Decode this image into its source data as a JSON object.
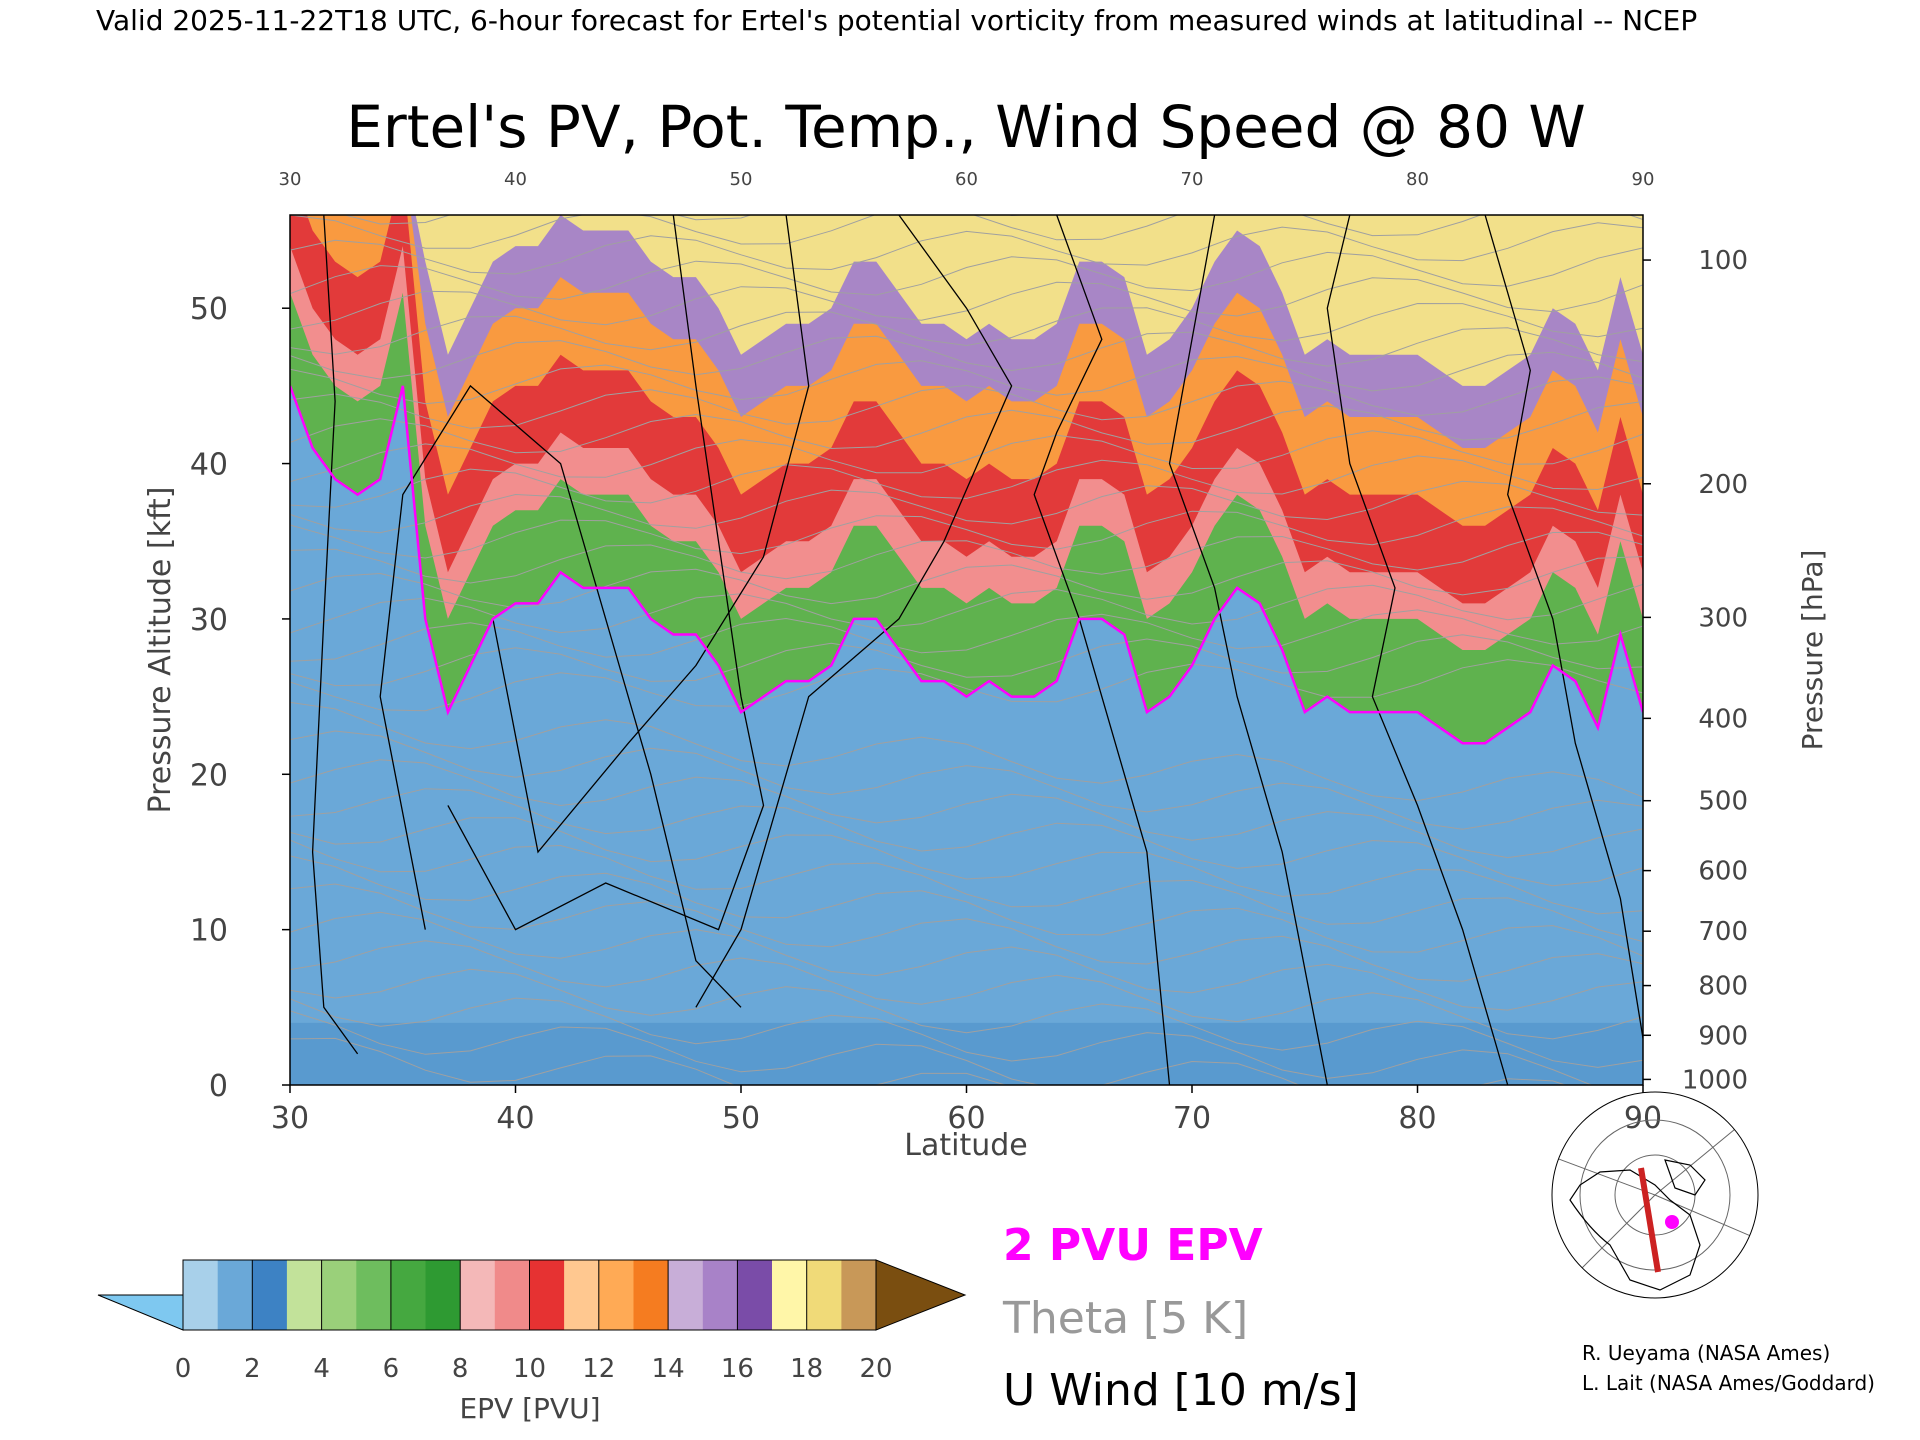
{
  "header_line": "Valid 2025-11-22T18 UTC, 6-hour forecast for Ertel's potential vorticity from measured winds at latitudinal -- NCEP",
  "chart_data": {
    "type": "heatmap",
    "title": "Ertel's PV, Pot. Temp., Wind Speed @ 80 W",
    "xlabel": "Latitude",
    "ylabel_left": "Pressure Altitude [kft]",
    "ylabel_right": "Pressure [hPa]",
    "xlim": [
      30,
      90
    ],
    "ylim": [
      0,
      56
    ],
    "x_ticks": [
      30,
      40,
      50,
      60,
      70,
      80,
      90
    ],
    "y_ticks": [
      0,
      10,
      20,
      30,
      40,
      50
    ],
    "pressure_ticks": [
      {
        "hpa": 100,
        "kft": 53.1
      },
      {
        "hpa": 200,
        "kft": 38.7
      },
      {
        "hpa": 300,
        "kft": 30.1
      },
      {
        "hpa": 400,
        "kft": 23.6
      },
      {
        "hpa": 500,
        "kft": 18.3
      },
      {
        "hpa": 600,
        "kft": 13.8
      },
      {
        "hpa": 700,
        "kft": 9.9
      },
      {
        "hpa": 800,
        "kft": 6.4
      },
      {
        "hpa": 900,
        "kft": 3.2
      },
      {
        "hpa": 1000,
        "kft": 0.36
      }
    ],
    "pv_2pvu_boundary": {
      "lat": [
        30,
        31,
        32,
        33,
        34,
        35,
        36,
        37,
        38,
        39,
        40,
        41,
        42,
        43,
        44,
        45,
        46,
        47,
        48,
        49,
        50,
        51,
        52,
        53,
        54,
        55,
        56,
        57,
        58,
        59,
        60,
        61,
        62,
        63,
        64,
        65,
        66,
        67,
        68,
        69,
        70,
        71,
        72,
        73,
        74,
        75,
        76,
        77,
        78,
        79,
        80,
        81,
        82,
        83,
        84,
        85,
        86,
        87,
        88,
        89,
        90
      ],
      "kft": [
        45,
        41,
        39,
        38,
        39,
        45,
        30,
        24,
        27,
        30,
        31,
        31,
        33,
        32,
        32,
        32,
        30,
        29,
        29,
        27,
        24,
        25,
        26,
        26,
        27,
        30,
        30,
        28,
        26,
        26,
        25,
        26,
        25,
        25,
        26,
        30,
        30,
        29,
        24,
        25,
        27,
        30,
        32,
        31,
        28,
        24,
        25,
        24,
        24,
        24,
        24,
        23,
        22,
        22,
        23,
        24,
        27,
        26,
        23,
        29,
        24
      ]
    },
    "pv_colorbar": {
      "label": "EPV [PVU]",
      "min": 0,
      "max": 20,
      "step": 1,
      "tick_labels": [
        "0",
        "2",
        "4",
        "6",
        "8",
        "10",
        "12",
        "14",
        "16",
        "18",
        "20"
      ],
      "under_color": "#7ec8f0",
      "over_color": "#7a4e10",
      "colors": [
        "#a8d0ea",
        "#6aa8d8",
        "#3d82c4",
        "#c2e29a",
        "#9ad07a",
        "#6ebd5e",
        "#45a840",
        "#2e9a32",
        "#f4b8b8",
        "#f08a8a",
        "#e63232",
        "#ffc890",
        "#ffaa55",
        "#f57c20",
        "#c8aed8",
        "#a882c8",
        "#7a4ca8",
        "#fff6a8",
        "#f0da78",
        "#c89858"
      ]
    },
    "legend_entries": [
      {
        "text": "2 PVU EPV",
        "color": "#ff00ff"
      },
      {
        "text": "Theta [5 K]",
        "color": "#999999"
      },
      {
        "text": "U Wind [10 m/s]",
        "color": "#000000"
      }
    ],
    "map_inset": {
      "marker_color": "#ff00ff",
      "line_color": "#cc2222"
    }
  },
  "credits": [
    "R. Ueyama (NASA Ames)",
    "L. Lait (NASA Ames/Goddard)"
  ]
}
